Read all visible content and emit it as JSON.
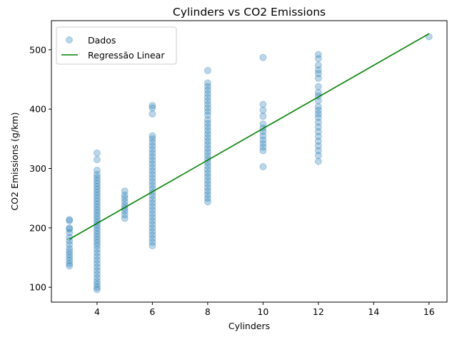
{
  "chart_data": {
    "type": "scatter",
    "title": "Cylinders vs CO2 Emissions",
    "xlabel": "Cylinders",
    "ylabel": "CO2 Emissions (g/km)",
    "xlim": [
      2.35,
      16.65
    ],
    "ylim": [
      75,
      549
    ],
    "xticks": [
      4,
      6,
      8,
      10,
      12,
      14,
      16
    ],
    "yticks": [
      100,
      200,
      300,
      400,
      500
    ],
    "grid": false,
    "legend_position": "top-left",
    "series": [
      {
        "name": "Dados",
        "kind": "scatter",
        "color": "#1f77b4",
        "alpha": 0.3,
        "points": [
          [
            3,
            136
          ],
          [
            3,
            140
          ],
          [
            3,
            145
          ],
          [
            3,
            150
          ],
          [
            3,
            155
          ],
          [
            3,
            160
          ],
          [
            3,
            165
          ],
          [
            3,
            172
          ],
          [
            3,
            178
          ],
          [
            3,
            184
          ],
          [
            3,
            192
          ],
          [
            3,
            198
          ],
          [
            3,
            200
          ],
          [
            3,
            212
          ],
          [
            3,
            214
          ],
          [
            4,
            96
          ],
          [
            4,
            100
          ],
          [
            4,
            105
          ],
          [
            4,
            110
          ],
          [
            4,
            116
          ],
          [
            4,
            122
          ],
          [
            4,
            128
          ],
          [
            4,
            134
          ],
          [
            4,
            140
          ],
          [
            4,
            146
          ],
          [
            4,
            152
          ],
          [
            4,
            158
          ],
          [
            4,
            164
          ],
          [
            4,
            170
          ],
          [
            4,
            175
          ],
          [
            4,
            180
          ],
          [
            4,
            185
          ],
          [
            4,
            190
          ],
          [
            4,
            195
          ],
          [
            4,
            200
          ],
          [
            4,
            205
          ],
          [
            4,
            210
          ],
          [
            4,
            215
          ],
          [
            4,
            220
          ],
          [
            4,
            225
          ],
          [
            4,
            230
          ],
          [
            4,
            235
          ],
          [
            4,
            240
          ],
          [
            4,
            245
          ],
          [
            4,
            250
          ],
          [
            4,
            255
          ],
          [
            4,
            260
          ],
          [
            4,
            265
          ],
          [
            4,
            270
          ],
          [
            4,
            275
          ],
          [
            4,
            280
          ],
          [
            4,
            285
          ],
          [
            4,
            290
          ],
          [
            4,
            297
          ],
          [
            4,
            315
          ],
          [
            4,
            326
          ],
          [
            5,
            216
          ],
          [
            5,
            222
          ],
          [
            5,
            228
          ],
          [
            5,
            233
          ],
          [
            5,
            238
          ],
          [
            5,
            244
          ],
          [
            5,
            250
          ],
          [
            5,
            255
          ],
          [
            5,
            262
          ],
          [
            6,
            170
          ],
          [
            6,
            176
          ],
          [
            6,
            182
          ],
          [
            6,
            188
          ],
          [
            6,
            194
          ],
          [
            6,
            200
          ],
          [
            6,
            206
          ],
          [
            6,
            212
          ],
          [
            6,
            218
          ],
          [
            6,
            224
          ],
          [
            6,
            230
          ],
          [
            6,
            236
          ],
          [
            6,
            242
          ],
          [
            6,
            248
          ],
          [
            6,
            254
          ],
          [
            6,
            260
          ],
          [
            6,
            266
          ],
          [
            6,
            272
          ],
          [
            6,
            278
          ],
          [
            6,
            284
          ],
          [
            6,
            290
          ],
          [
            6,
            296
          ],
          [
            6,
            302
          ],
          [
            6,
            308
          ],
          [
            6,
            314
          ],
          [
            6,
            320
          ],
          [
            6,
            326
          ],
          [
            6,
            332
          ],
          [
            6,
            338
          ],
          [
            6,
            344
          ],
          [
            6,
            350
          ],
          [
            6,
            355
          ],
          [
            6,
            392
          ],
          [
            6,
            402
          ],
          [
            6,
            406
          ],
          [
            8,
            244
          ],
          [
            8,
            250
          ],
          [
            8,
            256
          ],
          [
            8,
            262
          ],
          [
            8,
            268
          ],
          [
            8,
            274
          ],
          [
            8,
            280
          ],
          [
            8,
            286
          ],
          [
            8,
            292
          ],
          [
            8,
            298
          ],
          [
            8,
            304
          ],
          [
            8,
            310
          ],
          [
            8,
            316
          ],
          [
            8,
            322
          ],
          [
            8,
            328
          ],
          [
            8,
            334
          ],
          [
            8,
            340
          ],
          [
            8,
            346
          ],
          [
            8,
            352
          ],
          [
            8,
            358
          ],
          [
            8,
            364
          ],
          [
            8,
            370
          ],
          [
            8,
            376
          ],
          [
            8,
            382
          ],
          [
            8,
            390
          ],
          [
            8,
            396
          ],
          [
            8,
            402
          ],
          [
            8,
            408
          ],
          [
            8,
            414
          ],
          [
            8,
            420
          ],
          [
            8,
            426
          ],
          [
            8,
            432
          ],
          [
            8,
            438
          ],
          [
            8,
            444
          ],
          [
            8,
            465
          ],
          [
            10,
            303
          ],
          [
            10,
            330
          ],
          [
            10,
            336
          ],
          [
            10,
            342
          ],
          [
            10,
            348
          ],
          [
            10,
            355
          ],
          [
            10,
            362
          ],
          [
            10,
            368
          ],
          [
            10,
            375
          ],
          [
            10,
            388
          ],
          [
            10,
            398
          ],
          [
            10,
            408
          ],
          [
            10,
            487
          ],
          [
            12,
            312
          ],
          [
            12,
            322
          ],
          [
            12,
            330
          ],
          [
            12,
            338
          ],
          [
            12,
            346
          ],
          [
            12,
            354
          ],
          [
            12,
            362
          ],
          [
            12,
            370
          ],
          [
            12,
            378
          ],
          [
            12,
            386
          ],
          [
            12,
            392
          ],
          [
            12,
            398
          ],
          [
            12,
            404
          ],
          [
            12,
            414
          ],
          [
            12,
            422
          ],
          [
            12,
            428
          ],
          [
            12,
            438
          ],
          [
            12,
            452
          ],
          [
            12,
            460
          ],
          [
            12,
            466
          ],
          [
            12,
            474
          ],
          [
            12,
            485
          ],
          [
            12,
            492
          ],
          [
            16,
            522
          ]
        ]
      },
      {
        "name": "Regressão Linear",
        "kind": "line",
        "color": "#008000",
        "x": [
          3,
          16
        ],
        "y": [
          181,
          527
        ]
      }
    ]
  }
}
